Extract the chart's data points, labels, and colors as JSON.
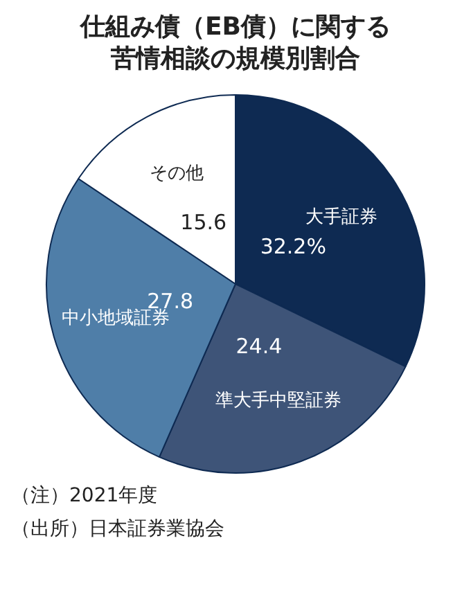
{
  "chart_data": {
    "type": "pie",
    "title": "仕組み債（EB債）に関する苦情相談の規模別割合",
    "categories": [
      "大手証券",
      "準大手中堅証券",
      "中小地域証券",
      "その他"
    ],
    "values": [
      32.2,
      24.4,
      27.8,
      15.6
    ],
    "value_labels": [
      "32.2%",
      "24.4",
      "27.8",
      "15.6"
    ],
    "colors": [
      "#0e2a52",
      "#3e5478",
      "#4f7ea8",
      "#ffffff"
    ],
    "annotations": [
      "（注）2021年度",
      "（出所）日本証券業協会"
    ]
  }
}
